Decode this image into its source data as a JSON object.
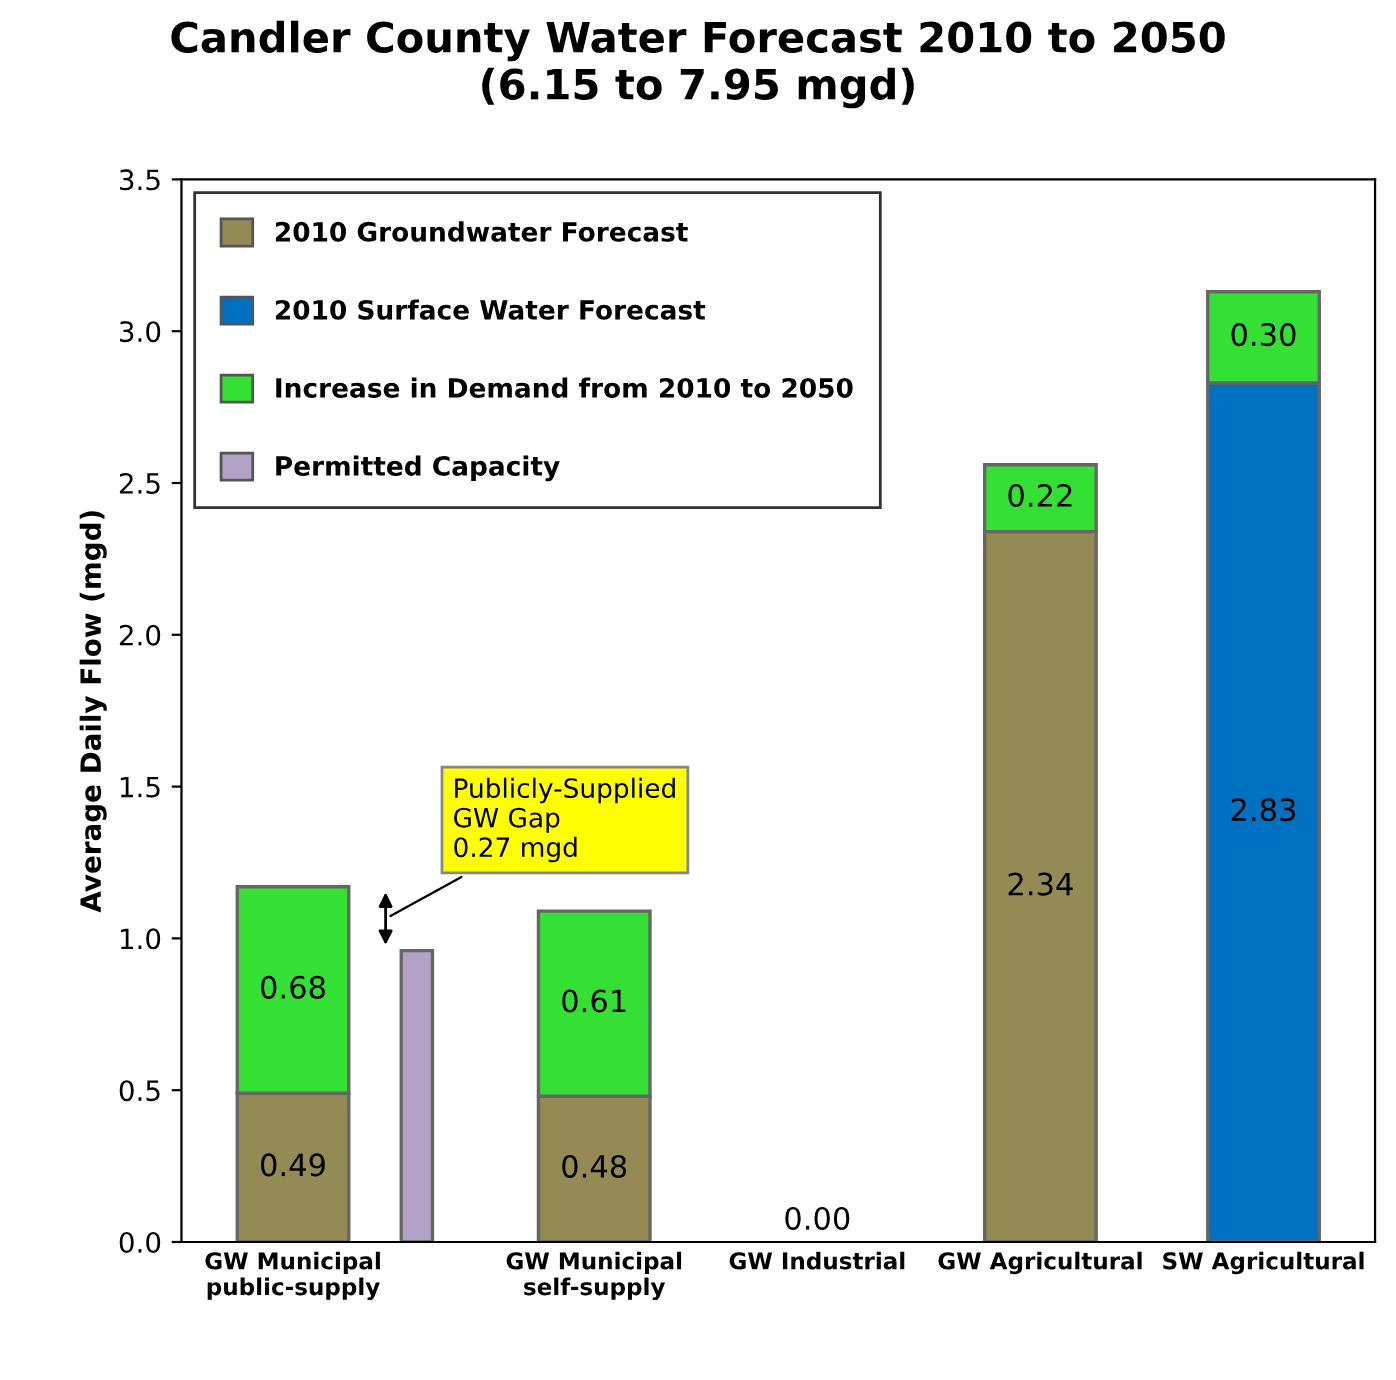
{
  "chart_data": {
    "type": "bar",
    "stacked": true,
    "title": "Candler County Water Forecast 2010 to 2050\n(6.15 to 7.95 mgd)",
    "ylabel": "Average Daily Flow (mgd)",
    "categories": [
      "GW Municipal\npublic-supply",
      null,
      "GW Municipal\nself-supply",
      "GW Industrial",
      "GW Agricultural",
      "SW Agricultural"
    ],
    "series": [
      {
        "name": "2010 Groundwater Forecast",
        "color": "#948a54",
        "values": [
          0.49,
          null,
          0.48,
          0,
          2.34,
          null
        ],
        "value_labels": [
          "0.49",
          null,
          "0.48",
          "0.00",
          "2.34",
          null
        ]
      },
      {
        "name": "2010 Surface Water Forecast",
        "color": "#0070c0",
        "values": [
          null,
          null,
          null,
          null,
          null,
          2.83
        ],
        "value_labels": [
          null,
          null,
          null,
          null,
          null,
          "2.83"
        ]
      },
      {
        "name": "Increase in Demand from 2010 to 2050",
        "color": "#33e033",
        "values": [
          0.68,
          null,
          0.61,
          null,
          0.22,
          0.3
        ],
        "value_labels": [
          "0.68",
          null,
          "0.61",
          null,
          "0.22",
          "0.30"
        ]
      },
      {
        "name": "Permitted Capacity",
        "color": "#b3a2c7",
        "values": [
          null,
          0.96,
          null,
          null,
          null,
          null
        ]
      }
    ],
    "ylim": [
      0,
      3.5
    ],
    "yticks": [
      {
        "value": 0,
        "label": "0.0"
      },
      {
        "value": 0.5,
        "label": "0.5"
      },
      {
        "value": 1,
        "label": "1.0"
      },
      {
        "value": 1.5,
        "label": "1.5"
      },
      {
        "value": 2,
        "label": "2.0"
      },
      {
        "value": 2.5,
        "label": "2.5"
      },
      {
        "value": 3,
        "label": "3.0"
      },
      {
        "value": 3.5,
        "label": "3.5"
      }
    ],
    "grid": false,
    "legend": "top left",
    "annotations": [
      "Publicly-Supplied\nGW Gap\n0.27 mgd"
    ]
  }
}
